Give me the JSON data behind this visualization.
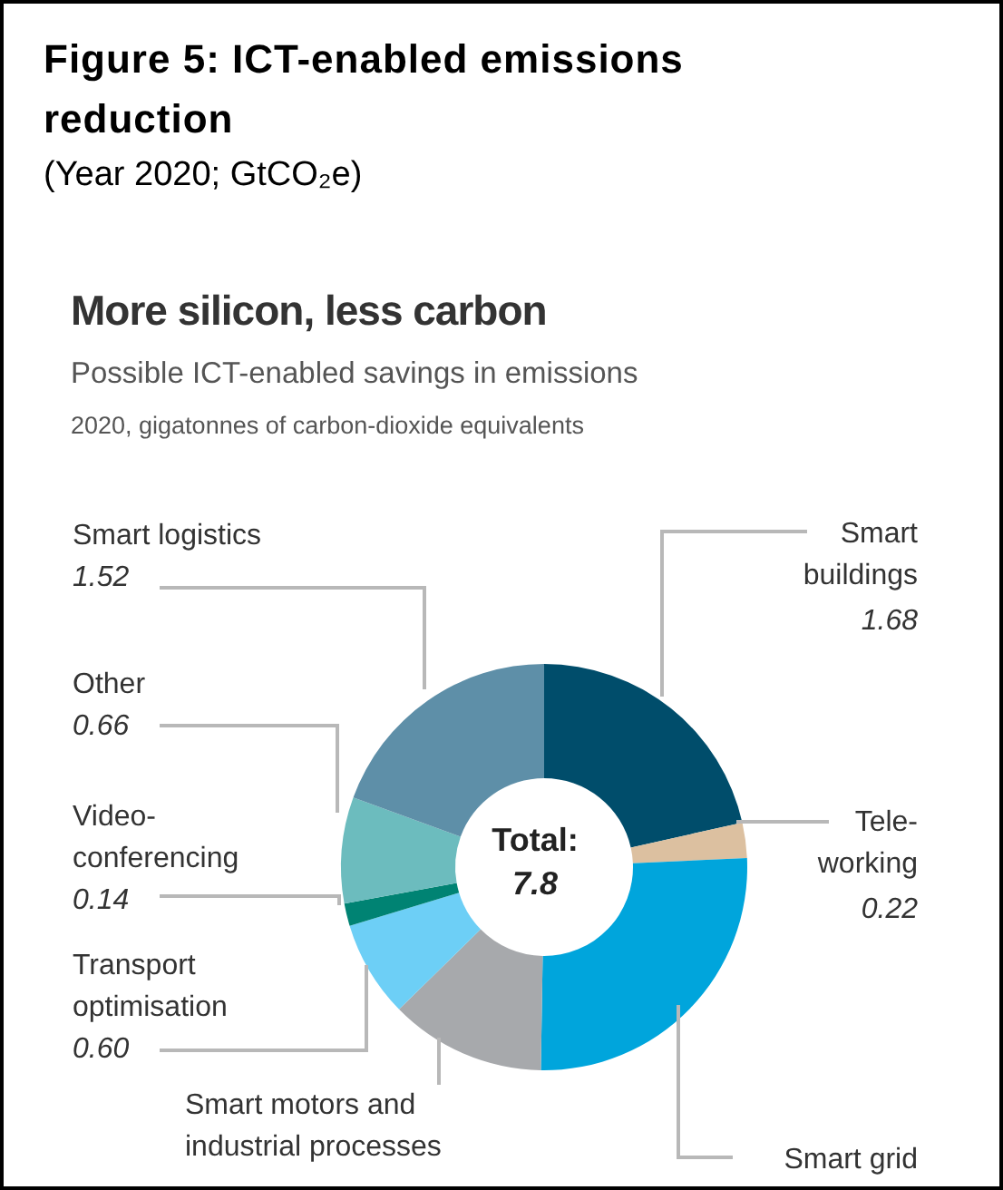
{
  "chart_data": {
    "type": "donut",
    "title": "Figure 5: ICT-enabled emissions reduction",
    "subtitle": "(Year 2020; GtCO₂e)",
    "categories": [
      "Smart buildings",
      "Tele-working",
      "Smart grid",
      "Smart motors and industrial processes",
      "Transport optimisation",
      "Video-conferencing",
      "Other",
      "Smart logistics"
    ],
    "values": [
      1.68,
      0.22,
      2.03,
      0.97,
      0.6,
      0.14,
      0.66,
      1.52
    ],
    "value_labels": [
      "1.68",
      "0.22",
      null,
      null,
      "0.60",
      "0.14",
      "0.66",
      "1.52"
    ],
    "colors": [
      "#004d6b",
      "#dcc0a0",
      "#00a5dc",
      "#a7a9ac",
      "#6dcff6",
      "#008373",
      "#6cbcbe",
      "#5e8fa8"
    ],
    "annotations": [
      "More silicon, less carbon",
      "Possible ICT-enabled savings in emissions",
      "2020, gigatonnes of carbon-dioxide equivalents",
      "Total: 7.8"
    ]
  }
}
